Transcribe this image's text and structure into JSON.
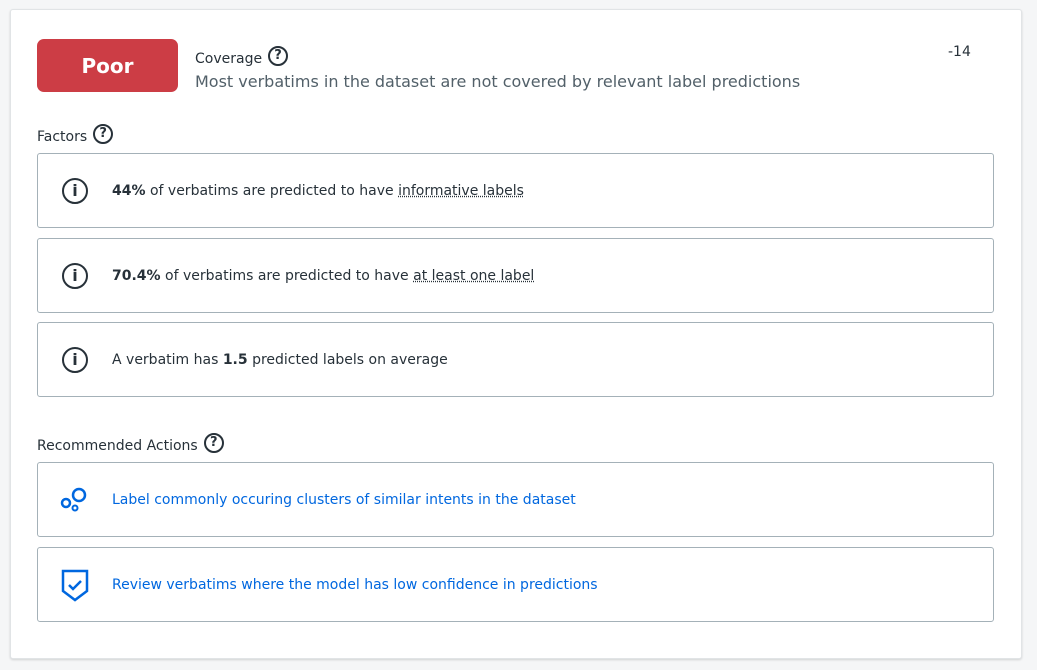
{
  "status": {
    "label": "Poor",
    "color": "#cc3d45"
  },
  "metric": {
    "title": "Coverage",
    "description": "Most verbatims in the dataset are not covered by relevant label predictions",
    "score": "-14"
  },
  "factors": {
    "heading": "Factors",
    "items": [
      {
        "bold": "44%",
        "text": " of verbatims are predicted to have ",
        "link": "informative labels",
        "after": ""
      },
      {
        "bold": "70.4%",
        "text": " of verbatims are predicted to have ",
        "link": "at least one label",
        "after": ""
      },
      {
        "pre": "A verbatim has ",
        "bold": "1.5",
        "text": " predicted labels on average"
      }
    ]
  },
  "actions": {
    "heading": "Recommended Actions",
    "items": [
      {
        "icon": "clusters-icon",
        "label": "Label commonly occuring clusters of similar intents in the dataset"
      },
      {
        "icon": "shield-check-icon",
        "label": "Review verbatims where the model has low confidence in predictions"
      }
    ]
  }
}
